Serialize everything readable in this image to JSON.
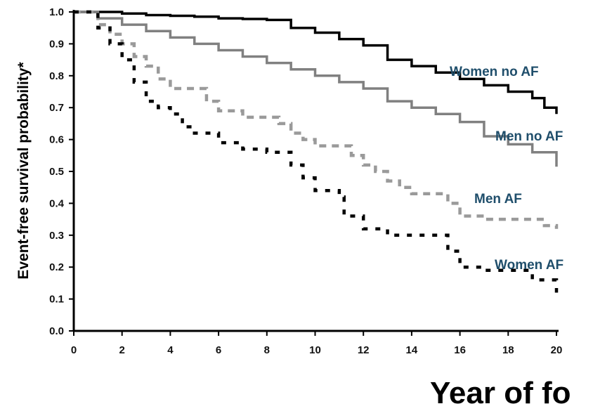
{
  "chart_data": {
    "type": "line",
    "title": "",
    "xlabel": "Year of fo",
    "ylabel": "Event-free survival probability*",
    "xlim": [
      0,
      20
    ],
    "ylim": [
      0.0,
      1.0
    ],
    "x_ticks": [
      "0",
      "2",
      "4",
      "6",
      "8",
      "10",
      "12",
      "14",
      "16",
      "18",
      "20"
    ],
    "y_ticks": [
      "0.0",
      "0.1",
      "0.2",
      "0.3",
      "0.4",
      "0.5",
      "0.6",
      "0.7",
      "0.8",
      "0.9",
      "1.0"
    ],
    "grid": false,
    "legend": "inline labels at line ends",
    "label_color": "#1f4e6b",
    "series": [
      {
        "name": "Women no AF",
        "color": "#000000",
        "style": "solid",
        "x": [
          0,
          1,
          2,
          3,
          4,
          5,
          6,
          7,
          8,
          9,
          10,
          11,
          12,
          13,
          14,
          15,
          16,
          17,
          18,
          19,
          19.5,
          20
        ],
        "y": [
          1.0,
          1.0,
          0.995,
          0.99,
          0.988,
          0.985,
          0.98,
          0.978,
          0.975,
          0.95,
          0.935,
          0.915,
          0.895,
          0.85,
          0.83,
          0.81,
          0.79,
          0.77,
          0.75,
          0.73,
          0.7,
          0.68
        ]
      },
      {
        "name": "Men no AF",
        "color": "#808080",
        "style": "solid",
        "x": [
          0,
          1,
          2,
          3,
          4,
          5,
          6,
          7,
          8,
          9,
          10,
          11,
          12,
          13,
          14,
          15,
          16,
          17,
          18,
          19,
          20
        ],
        "y": [
          1.0,
          0.98,
          0.96,
          0.94,
          0.92,
          0.9,
          0.88,
          0.86,
          0.84,
          0.82,
          0.8,
          0.78,
          0.76,
          0.72,
          0.7,
          0.68,
          0.655,
          0.61,
          0.585,
          0.56,
          0.515
        ]
      },
      {
        "name": "Men AF",
        "color": "#9a9a9a",
        "style": "dashed",
        "x": [
          0,
          1,
          1.5,
          2,
          2.5,
          3,
          3.5,
          4,
          5,
          5.5,
          6,
          7,
          8,
          8.5,
          9,
          9.5,
          10,
          11,
          11.5,
          12,
          12.5,
          13,
          13.5,
          14,
          15,
          15.5,
          16,
          17,
          18,
          19,
          19.5,
          20
        ],
        "y": [
          1.0,
          0.96,
          0.93,
          0.9,
          0.86,
          0.83,
          0.79,
          0.76,
          0.76,
          0.72,
          0.69,
          0.67,
          0.67,
          0.65,
          0.62,
          0.6,
          0.58,
          0.58,
          0.55,
          0.52,
          0.5,
          0.47,
          0.45,
          0.43,
          0.43,
          0.4,
          0.36,
          0.35,
          0.35,
          0.35,
          0.33,
          0.32
        ]
      },
      {
        "name": "Women AF",
        "color": "#000000",
        "style": "dashed",
        "x": [
          0,
          1,
          1.5,
          2,
          2.5,
          3,
          3.5,
          4,
          4.5,
          5,
          6,
          7,
          8,
          9,
          9.5,
          10,
          11,
          11.2,
          12,
          13,
          14,
          15,
          15.5,
          16,
          17,
          18,
          19,
          20
        ],
        "y": [
          1.0,
          0.95,
          0.9,
          0.85,
          0.78,
          0.72,
          0.7,
          0.68,
          0.64,
          0.62,
          0.59,
          0.57,
          0.56,
          0.52,
          0.48,
          0.44,
          0.42,
          0.36,
          0.32,
          0.3,
          0.3,
          0.3,
          0.25,
          0.2,
          0.19,
          0.19,
          0.16,
          0.12
        ]
      }
    ]
  }
}
